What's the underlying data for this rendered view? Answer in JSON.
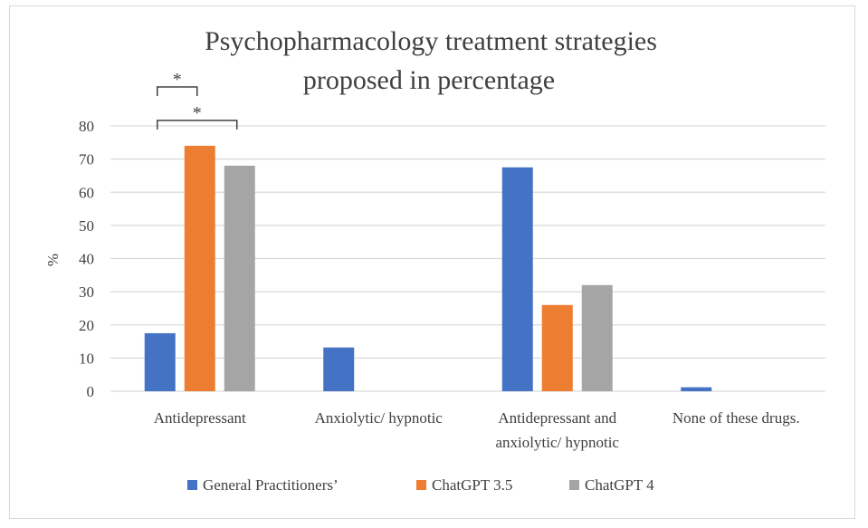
{
  "chart_data": {
    "type": "bar",
    "title_lines": [
      "Psychopharmacology treatment strategies",
      "proposed in percentage"
    ],
    "ylabel": "%",
    "xlabel": "",
    "ylim": [
      0,
      80
    ],
    "yticks": [
      0,
      10,
      20,
      30,
      40,
      50,
      60,
      70,
      80
    ],
    "grid": true,
    "legend_position": "bottom",
    "categories": [
      [
        "Antidepressant"
      ],
      [
        "Anxiolytic/ hypnotic"
      ],
      [
        "Antidepressant and",
        "anxiolytic/ hypnotic"
      ],
      [
        "None of these drugs."
      ]
    ],
    "series": [
      {
        "name": "General Practitioners’",
        "color": "#4472c4",
        "values": [
          17.5,
          13.2,
          67.5,
          1.2
        ]
      },
      {
        "name": "ChatGPT 3.5",
        "color": "#ed7d31",
        "values": [
          74,
          0,
          26,
          0
        ]
      },
      {
        "name": "ChatGPT 4",
        "color": "#a5a5a5",
        "values": [
          68,
          0,
          32,
          0
        ]
      }
    ],
    "annotations": [
      {
        "label": "*",
        "category": 0,
        "from_series": 0,
        "to_series": 1
      },
      {
        "label": "*",
        "category": 0,
        "from_series": 0,
        "to_series": 2
      }
    ]
  }
}
